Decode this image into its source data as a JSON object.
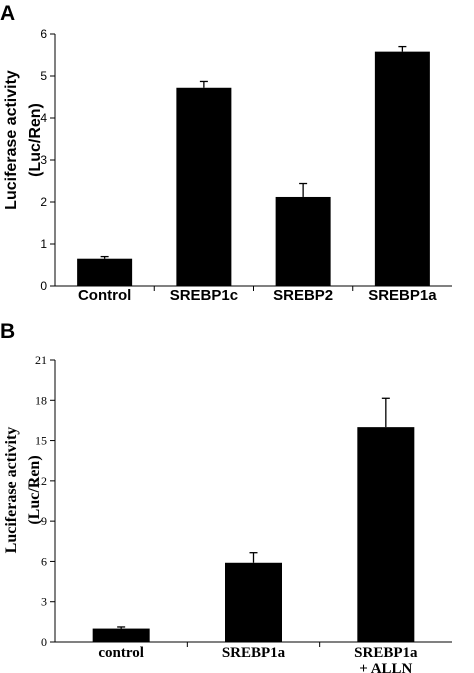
{
  "chart_data": [
    {
      "panel": "A",
      "type": "bar",
      "ylabel": [
        "Luciferase activity",
        "(Luc/Ren)"
      ],
      "categories": [
        "Control",
        "SREBP1c",
        "SREBP2",
        "SREBP1a"
      ],
      "values": [
        0.65,
        4.72,
        2.12,
        5.58
      ],
      "errors": [
        0.05,
        0.15,
        0.32,
        0.12
      ],
      "ylim": [
        0,
        6
      ],
      "yticks": [
        0,
        1,
        2,
        3,
        4,
        5,
        6
      ],
      "bar_color": "#000000",
      "grid": false
    },
    {
      "panel": "B",
      "type": "bar",
      "ylabel": [
        "Luciferase activity",
        "(Luc/Ren)"
      ],
      "categories": [
        [
          "control"
        ],
        [
          "SREBP1a"
        ],
        [
          "SREBP1a",
          "+ ALLN"
        ]
      ],
      "values": [
        1.0,
        5.9,
        16.0
      ],
      "errors": [
        0.12,
        0.75,
        2.15
      ],
      "ylim": [
        0,
        21
      ],
      "yticks": [
        0,
        3,
        6,
        9,
        12,
        15,
        18,
        21
      ],
      "bar_color": "#000000",
      "grid": false
    }
  ]
}
